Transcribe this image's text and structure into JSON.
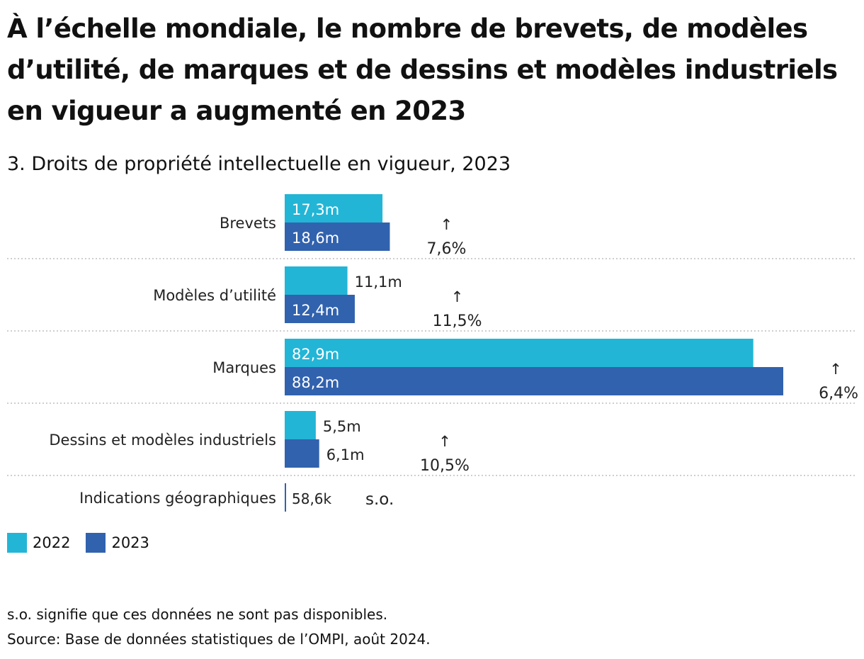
{
  "title": "À l’échelle mondiale, le nombre de brevets, de modèles d’utilité, de marques et de dessins et modèles industriels en vigueur a augmenté en 2023",
  "subtitle": "3. Droits de propriété intellectuelle en vigueur, 2023",
  "legend": {
    "items": [
      {
        "label": "2022",
        "color": "#23b5d6"
      },
      {
        "label": "2023",
        "color": "#3162ae"
      }
    ]
  },
  "notes": {
    "note": "s.o. signifie que ces données ne sont pas disponibles.",
    "source": "Source: Base de données statistiques de l’OMPI, août 2024."
  },
  "chart_data": {
    "type": "bar",
    "orientation": "horizontal",
    "categories": [
      "Brevets",
      "Modèles d’utilité",
      "Marques",
      "Dessins et modèles industriels",
      "Indications géographiques"
    ],
    "series": [
      {
        "name": "2022",
        "color": "#23b5d6",
        "values": [
          17.3,
          11.1,
          82.9,
          5.5,
          null
        ],
        "labels": [
          "17,3m",
          "11,1m",
          "82,9m",
          "5,5m",
          ""
        ]
      },
      {
        "name": "2023",
        "color": "#3162ae",
        "values": [
          18.6,
          12.4,
          88.2,
          6.1,
          0.0586
        ],
        "labels": [
          "18,6m",
          "12,4m",
          "88,2m",
          "6,1m",
          "58,6k"
        ]
      }
    ],
    "growth": [
      {
        "arrow": "↑",
        "label": "7,6%"
      },
      {
        "arrow": "↑",
        "label": "11,5%"
      },
      {
        "arrow": "↑",
        "label": "6,4%"
      },
      {
        "arrow": "↑",
        "label": "10,5%"
      },
      {
        "arrow": "",
        "label": "s.o."
      }
    ],
    "unit": "millions",
    "xlim": [
      0,
      88.2
    ]
  }
}
